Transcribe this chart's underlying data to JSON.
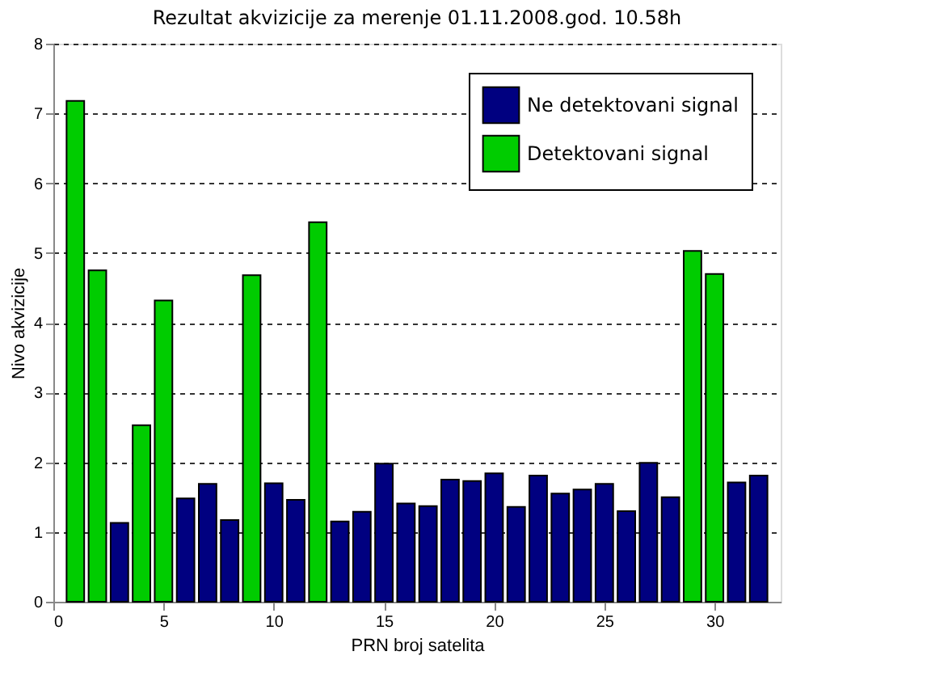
{
  "chart_data": {
    "type": "bar",
    "title": "Rezultat akvizicije za merenje 01.11.2008.god. 10.58h",
    "xlabel": "PRN broj satelita",
    "ylabel": "Nivo akvizicije",
    "x": [
      1,
      2,
      3,
      4,
      5,
      6,
      7,
      8,
      9,
      10,
      11,
      12,
      13,
      14,
      15,
      16,
      17,
      18,
      19,
      20,
      21,
      22,
      23,
      24,
      25,
      26,
      27,
      28,
      29,
      30,
      31,
      32
    ],
    "series": [
      {
        "name": "Ne detektovani signal",
        "color": "#000080",
        "values": [
          null,
          null,
          1.13,
          null,
          null,
          1.48,
          1.69,
          1.17,
          null,
          1.7,
          1.46,
          null,
          1.15,
          1.29,
          1.98,
          1.41,
          1.37,
          1.75,
          1.73,
          1.84,
          1.36,
          1.81,
          1.55,
          1.61,
          1.69,
          1.3,
          1.99,
          1.5,
          null,
          null,
          1.71,
          1.81
        ]
      },
      {
        "name": "Detektovani signal",
        "color": "#00cc00",
        "values": [
          7.18,
          4.75,
          null,
          2.53,
          4.32,
          null,
          null,
          null,
          4.68,
          null,
          null,
          5.44,
          null,
          null,
          null,
          null,
          null,
          null,
          null,
          null,
          null,
          null,
          null,
          null,
          null,
          null,
          null,
          null,
          5.03,
          4.7,
          null,
          null
        ]
      }
    ],
    "xlim": [
      0,
      33
    ],
    "xticks": [
      0,
      5,
      10,
      15,
      20,
      25,
      30
    ],
    "ylim": [
      0,
      8
    ],
    "yticks": [
      0,
      1,
      2,
      3,
      4,
      5,
      6,
      7,
      8
    ],
    "grid": "y",
    "legend": "top right"
  }
}
